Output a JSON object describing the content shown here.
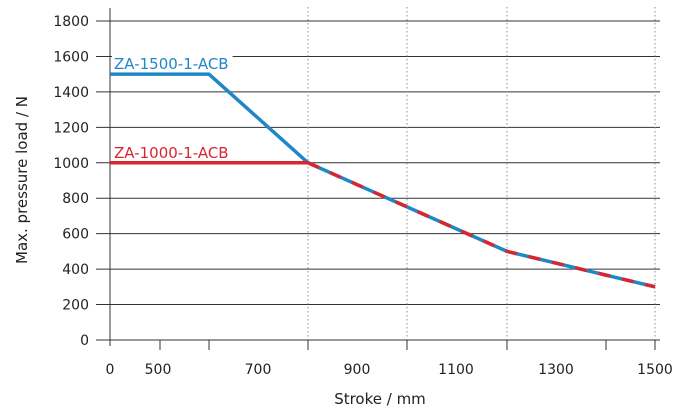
{
  "chart_data": {
    "type": "line",
    "title": "",
    "xlabel": "Stroke / mm",
    "ylabel": "Max. pressure load / N",
    "ylim": [
      0,
      1800
    ],
    "y_ticks": [
      0,
      200,
      400,
      600,
      800,
      1000,
      1200,
      1400,
      1600,
      1800
    ],
    "x_ticks": [
      "0",
      "500",
      "700",
      "900",
      "1100",
      "1300",
      "1500"
    ],
    "grid": "horizontal lines; dotted verticals at 800, 1000, 1200, 1400, 1500",
    "series": [
      {
        "name": "ZA-1500-1-ACB",
        "color": "#1f87c5",
        "style": "solid",
        "x": [
          0,
          600,
          800,
          1200,
          1500
        ],
        "y": [
          1500,
          1500,
          1000,
          500,
          300
        ]
      },
      {
        "name": "ZA-1000-1-ACB",
        "color": "#d9252f",
        "style": "solid up to 800, dashed over blue beyond",
        "x": [
          0,
          800,
          1200,
          1500
        ],
        "y": [
          1000,
          1000,
          500,
          300
        ]
      }
    ]
  }
}
